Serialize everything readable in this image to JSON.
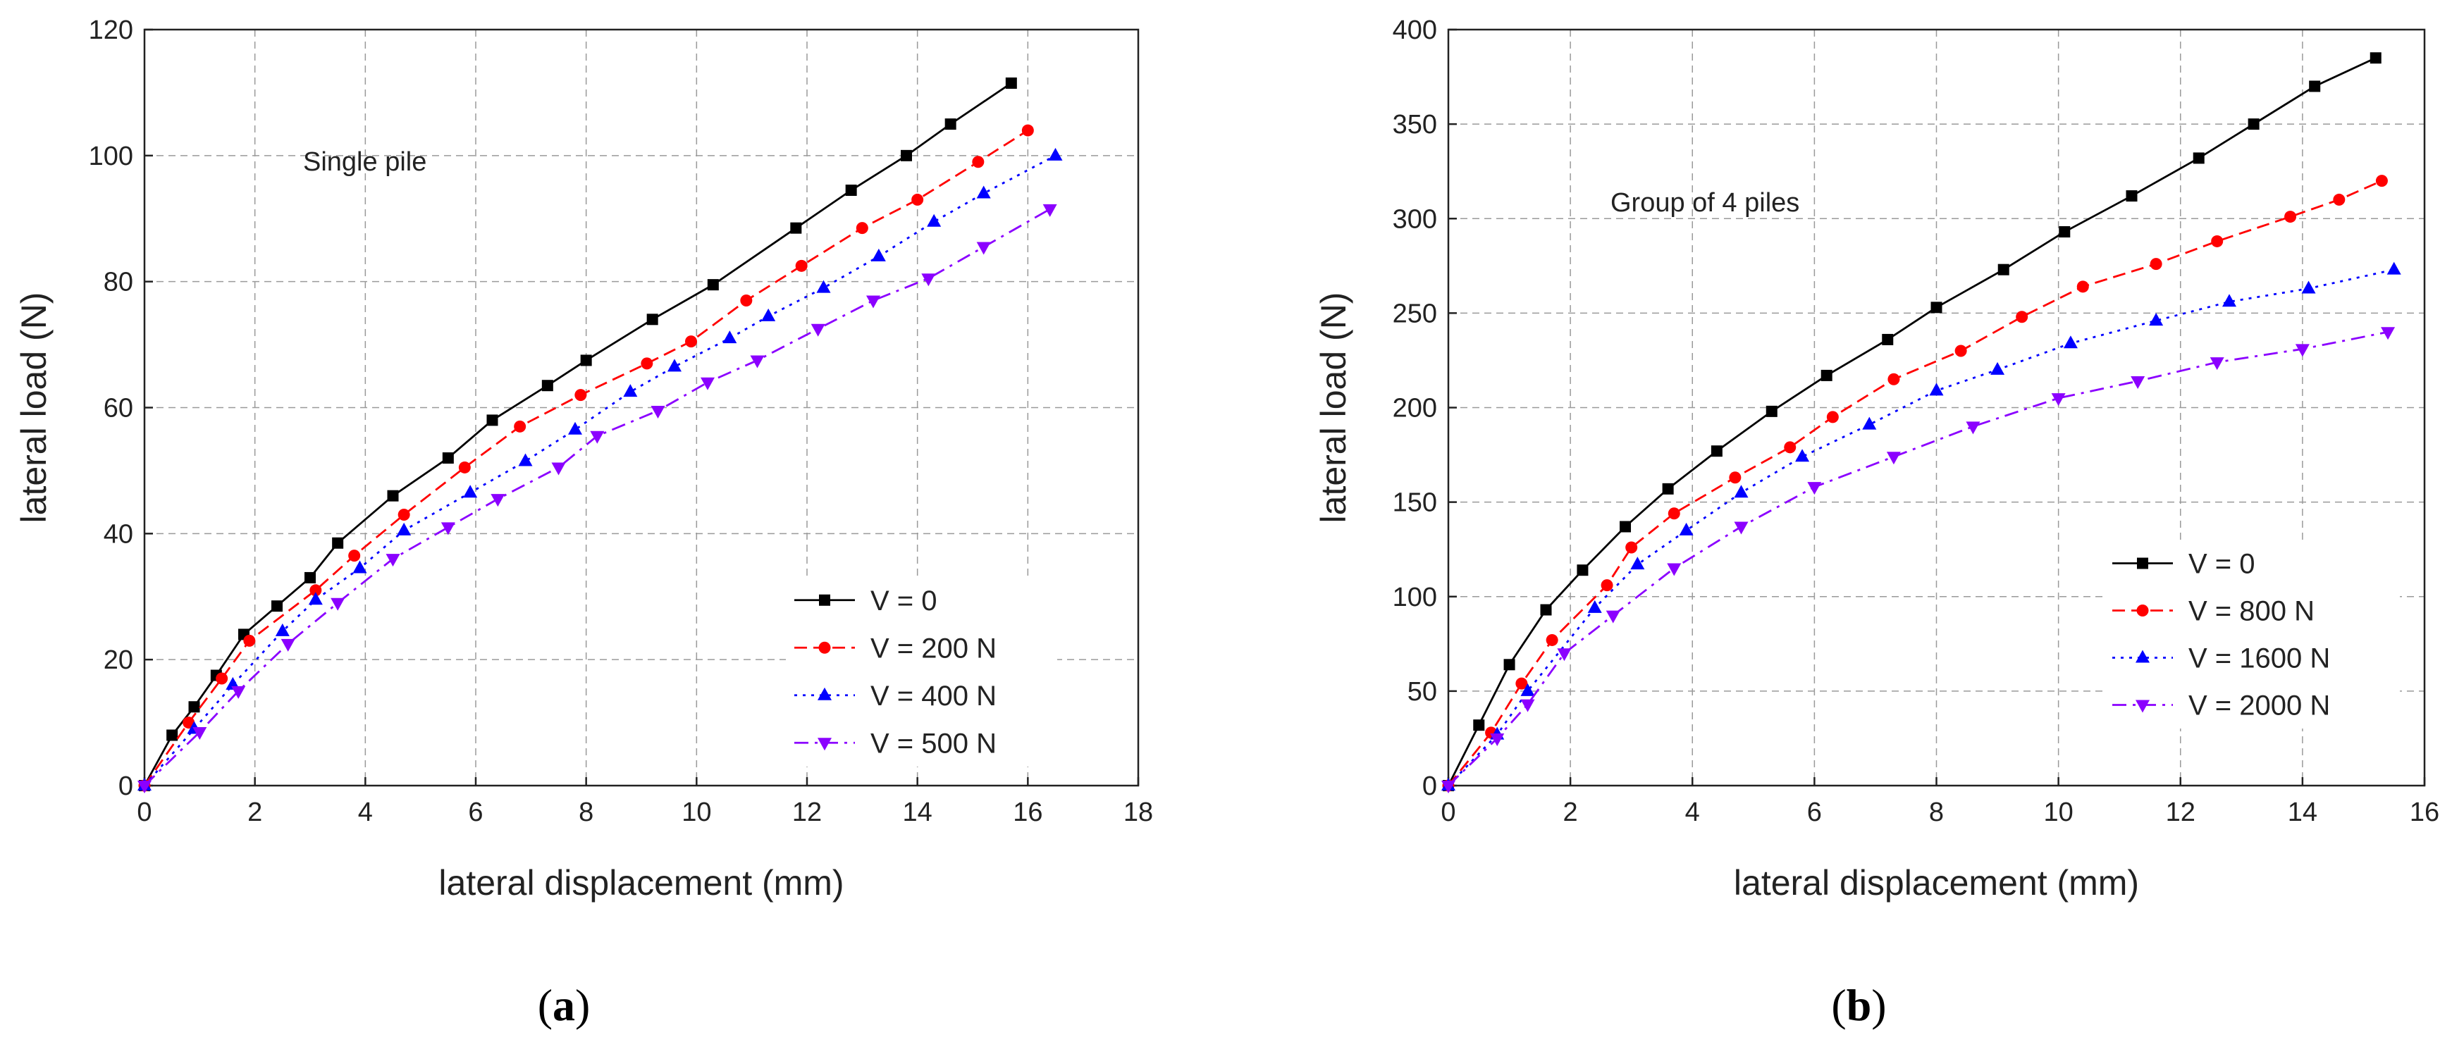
{
  "chart_data": [
    {
      "type": "line",
      "panel_label": "(a)",
      "panel_open": "(",
      "panel_letter": "a",
      "panel_close": ")",
      "annotation": "Single pile",
      "xlabel": "lateral displacement (mm)",
      "ylabel": "lateral load (N)",
      "xlim": [
        0,
        18
      ],
      "ylim": [
        0,
        120
      ],
      "xticks": [
        0,
        2,
        4,
        6,
        8,
        10,
        12,
        14,
        16,
        18
      ],
      "yticks": [
        0,
        20,
        40,
        60,
        80,
        100,
        120
      ],
      "grid": true,
      "legend_position": "lower-right",
      "series": [
        {
          "name": "V = 0",
          "color": "#000000",
          "marker": "square",
          "dash": "solid",
          "x": [
            0,
            0.5,
            0.9,
            1.3,
            1.8,
            2.4,
            3.0,
            3.5,
            4.5,
            5.5,
            6.3,
            7.3,
            8.0,
            9.2,
            10.3,
            11.8,
            12.8,
            13.8,
            14.6,
            15.7
          ],
          "y": [
            0,
            8,
            12.5,
            17.5,
            24,
            28.5,
            33,
            38.5,
            46,
            52,
            58,
            63.5,
            67.5,
            74,
            79.5,
            88.5,
            94.5,
            100,
            105,
            111.5
          ]
        },
        {
          "name": "V = 200 N",
          "color": "#ff0000",
          "marker": "circle",
          "dash": "dashed",
          "x": [
            0,
            0.8,
            1.4,
            1.9,
            3.1,
            3.8,
            4.7,
            5.8,
            6.8,
            7.9,
            9.1,
            9.9,
            10.9,
            11.9,
            13.0,
            14.0,
            15.1,
            16.0
          ],
          "y": [
            0,
            10,
            17,
            23,
            31,
            36.5,
            43,
            50.5,
            57,
            62,
            67,
            70.5,
            77,
            82.5,
            88.5,
            93,
            99,
            104
          ]
        },
        {
          "name": "V = 400 N",
          "color": "#0000ff",
          "marker": "triangle-up",
          "dash": "dotted",
          "x": [
            0,
            0.9,
            1.6,
            2.5,
            3.1,
            3.9,
            4.7,
            5.9,
            6.9,
            7.8,
            8.8,
            9.6,
            10.6,
            11.3,
            12.3,
            13.3,
            14.3,
            15.2,
            16.5
          ],
          "y": [
            0,
            9,
            16,
            24.5,
            29.5,
            34.5,
            40.5,
            46.5,
            51.5,
            56.5,
            62.5,
            66.5,
            71,
            74.5,
            79,
            84,
            89.5,
            94,
            100
          ]
        },
        {
          "name": "V = 500 N",
          "color": "#8b00ff",
          "marker": "triangle-down",
          "dash": "dashdot",
          "x": [
            0,
            1.0,
            1.7,
            2.6,
            3.5,
            4.5,
            5.5,
            6.4,
            7.5,
            8.2,
            9.3,
            10.2,
            11.1,
            12.2,
            13.2,
            14.2,
            15.2,
            16.4
          ],
          "y": [
            0,
            8.5,
            15,
            22.5,
            29,
            36,
            41,
            45.5,
            50.5,
            55.5,
            59.5,
            64,
            67.5,
            72.5,
            77,
            80.5,
            85.5,
            91.5
          ]
        }
      ]
    },
    {
      "type": "line",
      "panel_label": "(b)",
      "panel_open": "(",
      "panel_letter": "b",
      "panel_close": ")",
      "annotation": "Group of 4 piles",
      "xlabel": "lateral displacement (mm)",
      "ylabel": "lateral load (N)",
      "xlim": [
        0,
        16
      ],
      "ylim": [
        0,
        400
      ],
      "xticks": [
        0,
        2,
        4,
        6,
        8,
        10,
        12,
        14,
        16
      ],
      "yticks": [
        0,
        50,
        100,
        150,
        200,
        250,
        300,
        350,
        400
      ],
      "grid": true,
      "legend_position": "lower-right",
      "series": [
        {
          "name": "V = 0",
          "color": "#000000",
          "marker": "square",
          "dash": "solid",
          "x": [
            0,
            0.5,
            1.0,
            1.6,
            2.2,
            2.9,
            3.6,
            4.4,
            5.3,
            6.2,
            7.2,
            8.0,
            9.1,
            10.1,
            11.2,
            12.3,
            13.2,
            14.2,
            15.2
          ],
          "y": [
            0,
            32,
            64,
            93,
            114,
            137,
            157,
            177,
            198,
            217,
            236,
            253,
            273,
            293,
            312,
            332,
            350,
            370,
            385
          ]
        },
        {
          "name": "V = 800 N",
          "color": "#ff0000",
          "marker": "circle",
          "dash": "dashed",
          "x": [
            0,
            0.7,
            1.2,
            1.7,
            2.6,
            3.0,
            3.7,
            4.7,
            5.6,
            6.3,
            7.3,
            8.4,
            9.4,
            10.4,
            11.6,
            12.6,
            13.8,
            14.6,
            15.3
          ],
          "y": [
            0,
            28,
            54,
            77,
            106,
            126,
            144,
            163,
            179,
            195,
            215,
            230,
            248,
            264,
            276,
            288,
            301,
            310,
            320
          ]
        },
        {
          "name": "V = 1600 N",
          "color": "#0000ff",
          "marker": "triangle-up",
          "dash": "dotted",
          "x": [
            0,
            0.8,
            1.3,
            2.4,
            3.1,
            3.9,
            4.8,
            5.8,
            6.9,
            8.0,
            9.0,
            10.2,
            11.6,
            12.8,
            14.1,
            15.5
          ],
          "y": [
            0,
            27,
            50,
            94,
            117,
            135,
            155,
            174,
            191,
            209,
            220,
            234,
            246,
            256,
            263,
            273
          ]
        },
        {
          "name": "V = 2000 N",
          "color": "#8b00ff",
          "marker": "triangle-down",
          "dash": "dashdot",
          "x": [
            0,
            0.8,
            1.3,
            1.9,
            2.7,
            3.7,
            4.8,
            6.0,
            7.3,
            8.6,
            10.0,
            11.3,
            12.6,
            14.0,
            15.4
          ],
          "y": [
            0,
            25,
            43,
            70,
            90,
            115,
            137,
            158,
            174,
            190,
            205,
            214,
            224,
            231,
            240
          ]
        }
      ]
    }
  ]
}
